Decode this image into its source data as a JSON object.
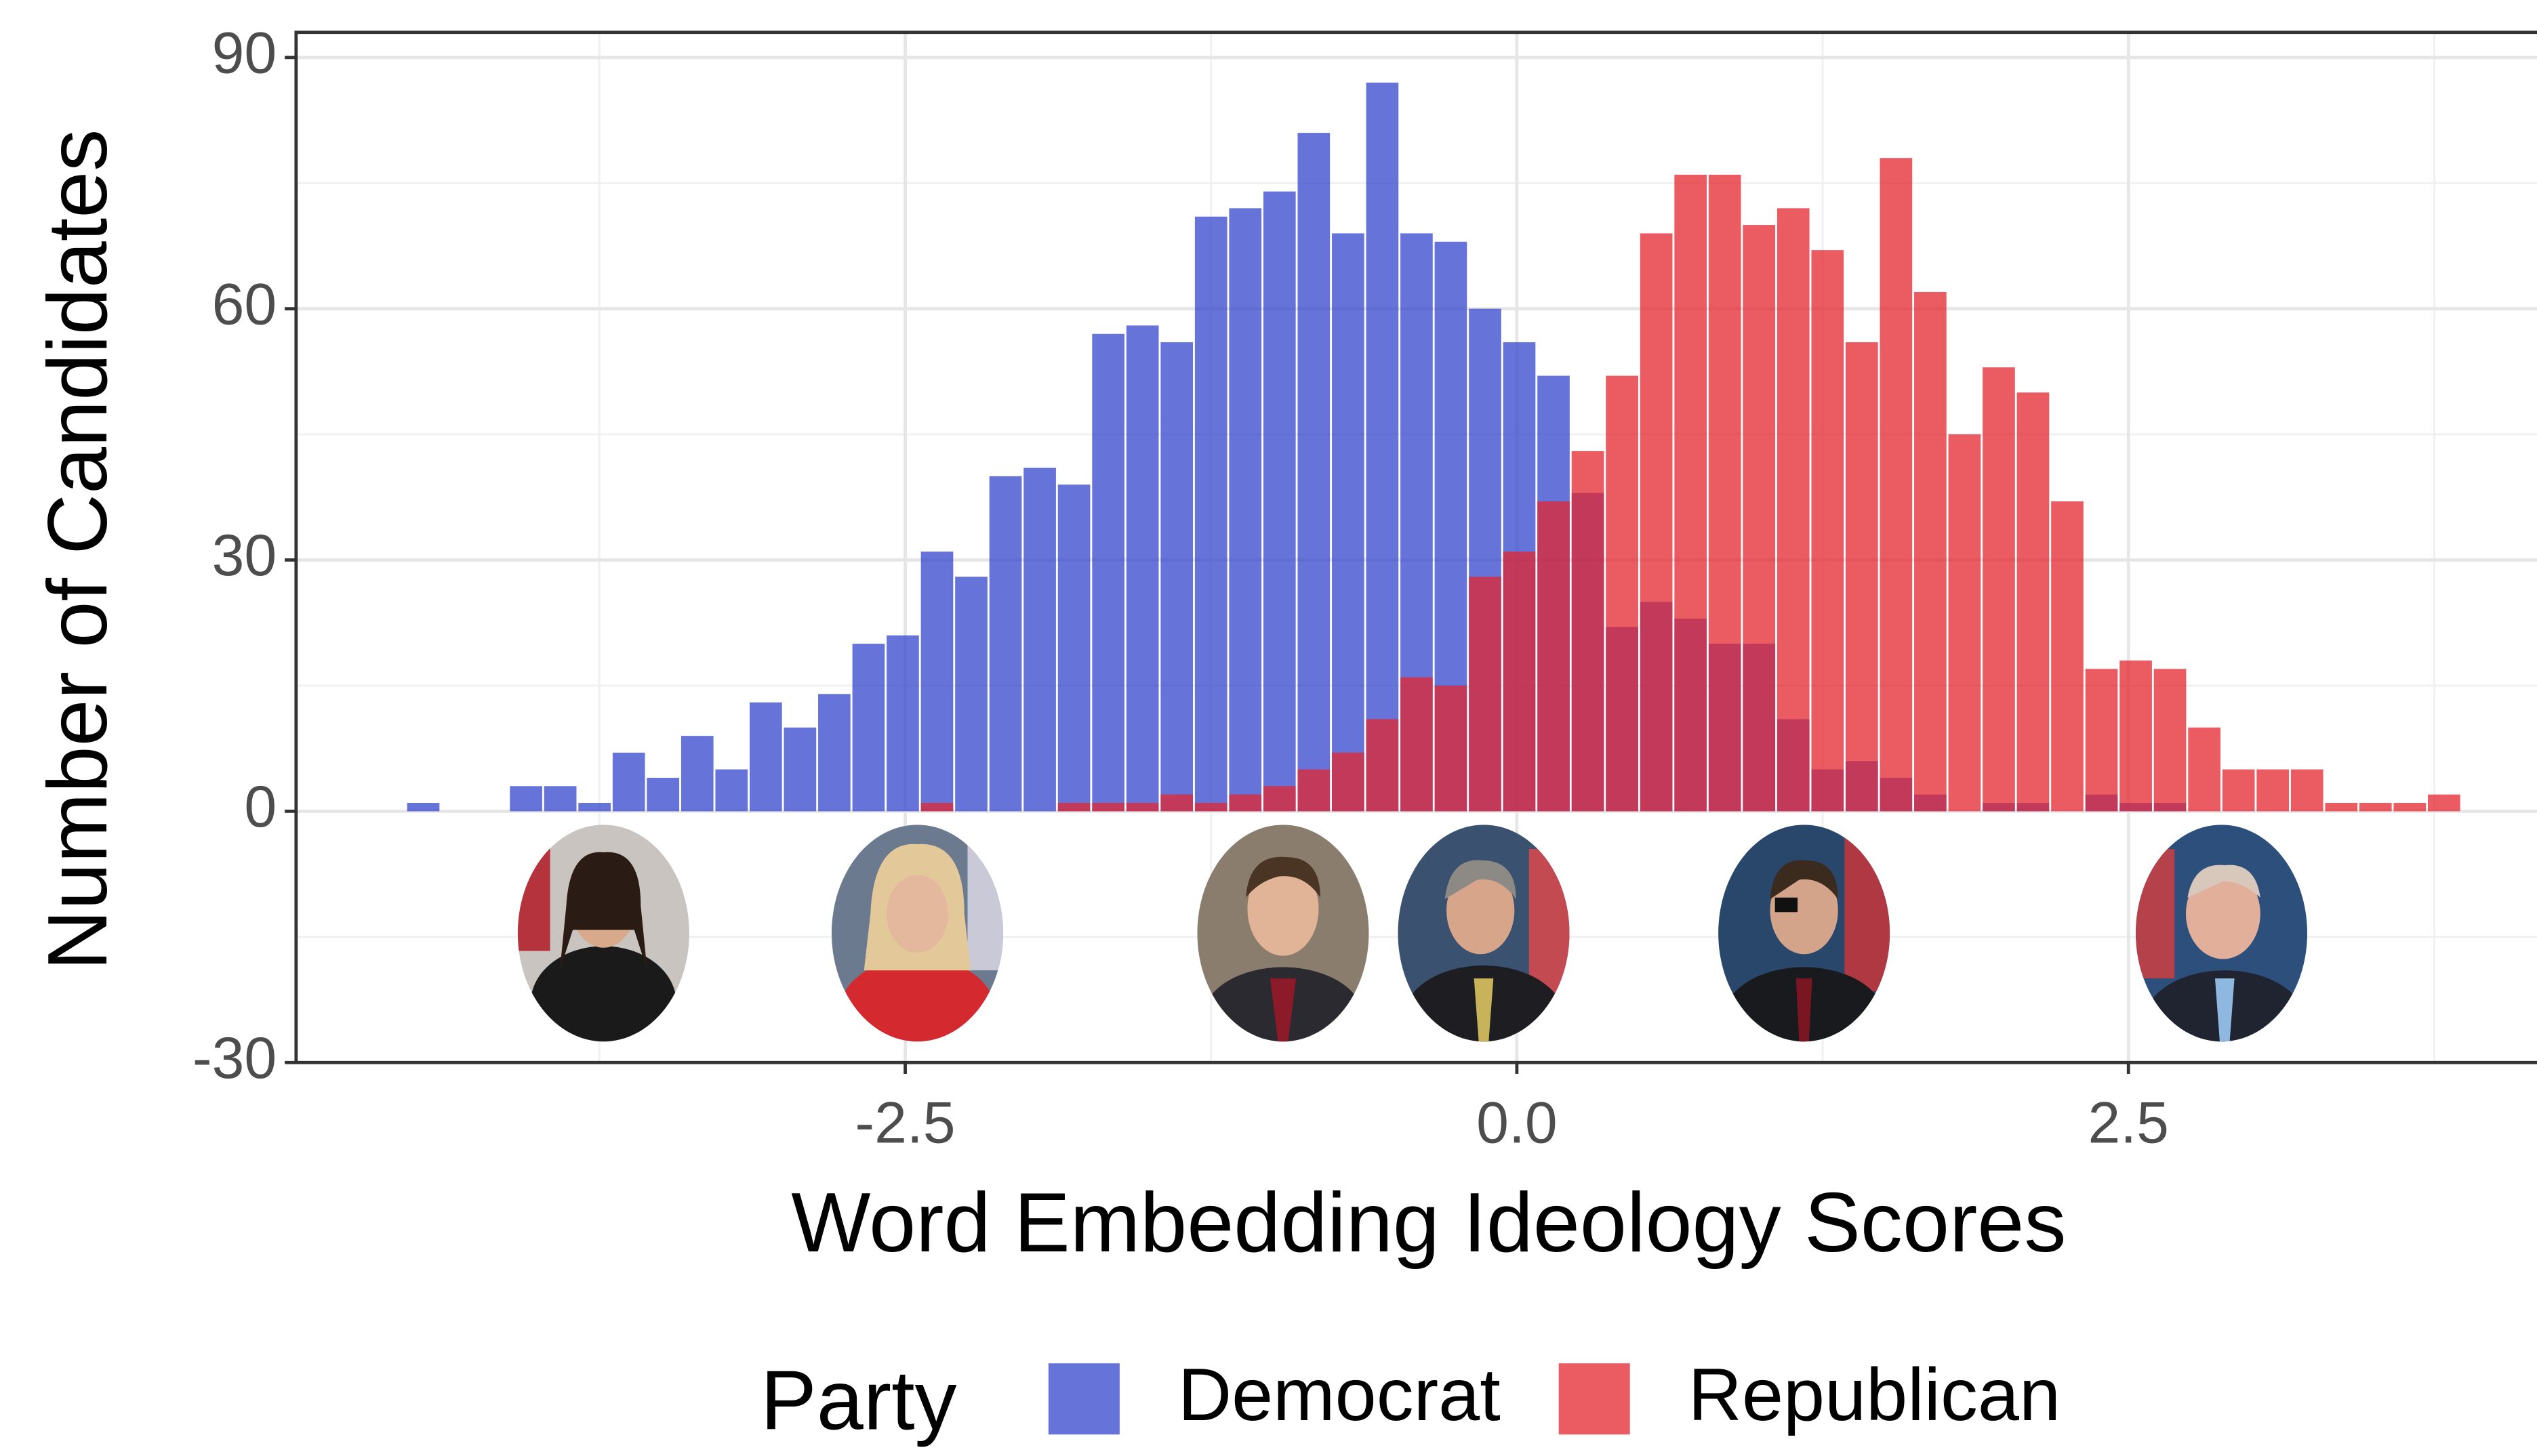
{
  "chart_data": {
    "type": "histogram",
    "x_label": "Word Embedding Ideology Scores",
    "y_label": "Number of Candidates",
    "legend_title": "Party",
    "legend_position": "bottom",
    "grid": true,
    "bins": [
      -4.54,
      -4.4,
      -4.26,
      -4.12,
      -3.98,
      -3.84,
      -3.7,
      -3.56,
      -3.42,
      -3.28,
      -3.14,
      -3.0,
      -2.86,
      -2.72,
      -2.58,
      -2.44,
      -2.3,
      -2.16,
      -2.02,
      -1.88,
      -1.74,
      -1.6,
      -1.46,
      -1.32,
      -1.18,
      -1.04,
      -0.9,
      -0.76,
      -0.62,
      -0.48,
      -0.34,
      -0.2,
      -0.06,
      0.08,
      0.22,
      0.36,
      0.5,
      0.64,
      0.78,
      0.92,
      1.06,
      1.2,
      1.34,
      1.48,
      1.62,
      1.76,
      1.9,
      2.04,
      2.18,
      2.32,
      2.46,
      2.6,
      2.74,
      2.88,
      3.02,
      3.16,
      3.3,
      3.44,
      3.58,
      3.72,
      3.86
    ],
    "series": [
      {
        "name": "Democrat",
        "color": "#3344cc",
        "values": [
          1,
          0,
          0,
          3,
          3,
          1,
          7,
          4,
          9,
          5,
          13,
          10,
          14,
          20,
          21,
          31,
          28,
          40,
          41,
          39,
          57,
          58,
          56,
          71,
          72,
          74,
          81,
          69,
          87,
          69,
          68,
          60,
          56,
          52,
          38,
          22,
          25,
          23,
          20,
          20,
          11,
          5,
          6,
          4,
          2,
          0,
          1,
          1,
          0,
          2,
          1,
          1,
          0,
          0,
          0,
          0,
          0,
          0,
          0,
          0
        ]
      },
      {
        "name": "Republican",
        "color": "#e3262d",
        "values": [
          0,
          0,
          0,
          0,
          0,
          0,
          0,
          0,
          0,
          0,
          0,
          0,
          0,
          0,
          0,
          1,
          0,
          0,
          0,
          1,
          1,
          1,
          2,
          1,
          2,
          3,
          5,
          7,
          11,
          16,
          15,
          28,
          31,
          37,
          43,
          52,
          69,
          76,
          76,
          70,
          72,
          67,
          56,
          78,
          62,
          45,
          53,
          50,
          37,
          17,
          18,
          17,
          10,
          5,
          5,
          5,
          1,
          1,
          1,
          2
        ]
      }
    ],
    "xlim": [
      -4.99,
      4.17
    ],
    "xticks": [
      -2.5,
      {
        "value": 0,
        "label": "0.0"
      },
      2.5
    ],
    "ylim": [
      -30,
      93
    ],
    "yticks": [
      -30,
      0,
      30,
      60,
      90
    ]
  }
}
